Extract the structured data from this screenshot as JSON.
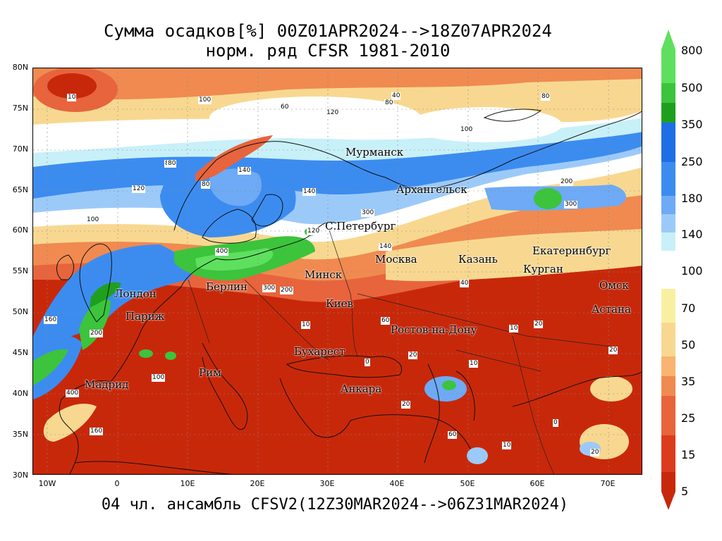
{
  "title_line1": "Сумма осадков[%] 00Z01APR2024-->18Z07APR2024",
  "title_line2": "норм. ряд CFSR 1981-2010",
  "bottom_caption": "04 чл. ансамбль CFSV2(12Z30MAR2024-->06Z31MAR2024)",
  "lat_labels": [
    "80N",
    "75N",
    "70N",
    "65N",
    "60N",
    "55N",
    "50N",
    "45N",
    "40N",
    "35N",
    "30N"
  ],
  "lon_labels": [
    "10W",
    "0",
    "10E",
    "20E",
    "30E",
    "40E",
    "50E",
    "60E",
    "70E"
  ],
  "colorbar": {
    "labels": [
      "800",
      "500",
      "350",
      "250",
      "180",
      "140",
      "100",
      "70",
      "50",
      "35",
      "25",
      "15",
      "5"
    ],
    "colors_wet": [
      "#5ee05e",
      "#3cc43c",
      "#1ea01e",
      "#1e6ee6",
      "#3c8cf0",
      "#6eaaf5",
      "#9ccaf8",
      "#c8f0f8"
    ],
    "colors_dry": [
      "#f8f0a0",
      "#f8d890",
      "#f8b470",
      "#f08a50",
      "#e8643c",
      "#dc3c1e",
      "#c8280a"
    ]
  },
  "cities": [
    {
      "name": "Мурманск"
    },
    {
      "name": "Архангельск"
    },
    {
      "name": "С.Петербург"
    },
    {
      "name": "Москва"
    },
    {
      "name": "Казань"
    },
    {
      "name": "Екатеринбург"
    },
    {
      "name": "Курган"
    },
    {
      "name": "Омск"
    },
    {
      "name": "Астана"
    },
    {
      "name": "Минск"
    },
    {
      "name": "Берлин"
    },
    {
      "name": "Лондон"
    },
    {
      "name": "Париж"
    },
    {
      "name": "Киев"
    },
    {
      "name": "Ростов-на-Дону"
    },
    {
      "name": "Бухарест"
    },
    {
      "name": "Рим"
    },
    {
      "name": "Мадрид"
    },
    {
      "name": "Анкара"
    }
  ],
  "contour_labels": [
    "10",
    "100",
    "80",
    "40",
    "60",
    "120",
    "140",
    "80",
    "120",
    "100",
    "80",
    "140",
    "120",
    "80",
    "300",
    "200",
    "400",
    "300",
    "200",
    "160",
    "20",
    "10",
    "0",
    "20",
    "10",
    "20",
    "100",
    "160",
    "200",
    "400",
    "300",
    "140",
    "100",
    "60",
    "20",
    "0",
    "10",
    "20",
    "60",
    "40",
    "80",
    "10"
  ]
}
